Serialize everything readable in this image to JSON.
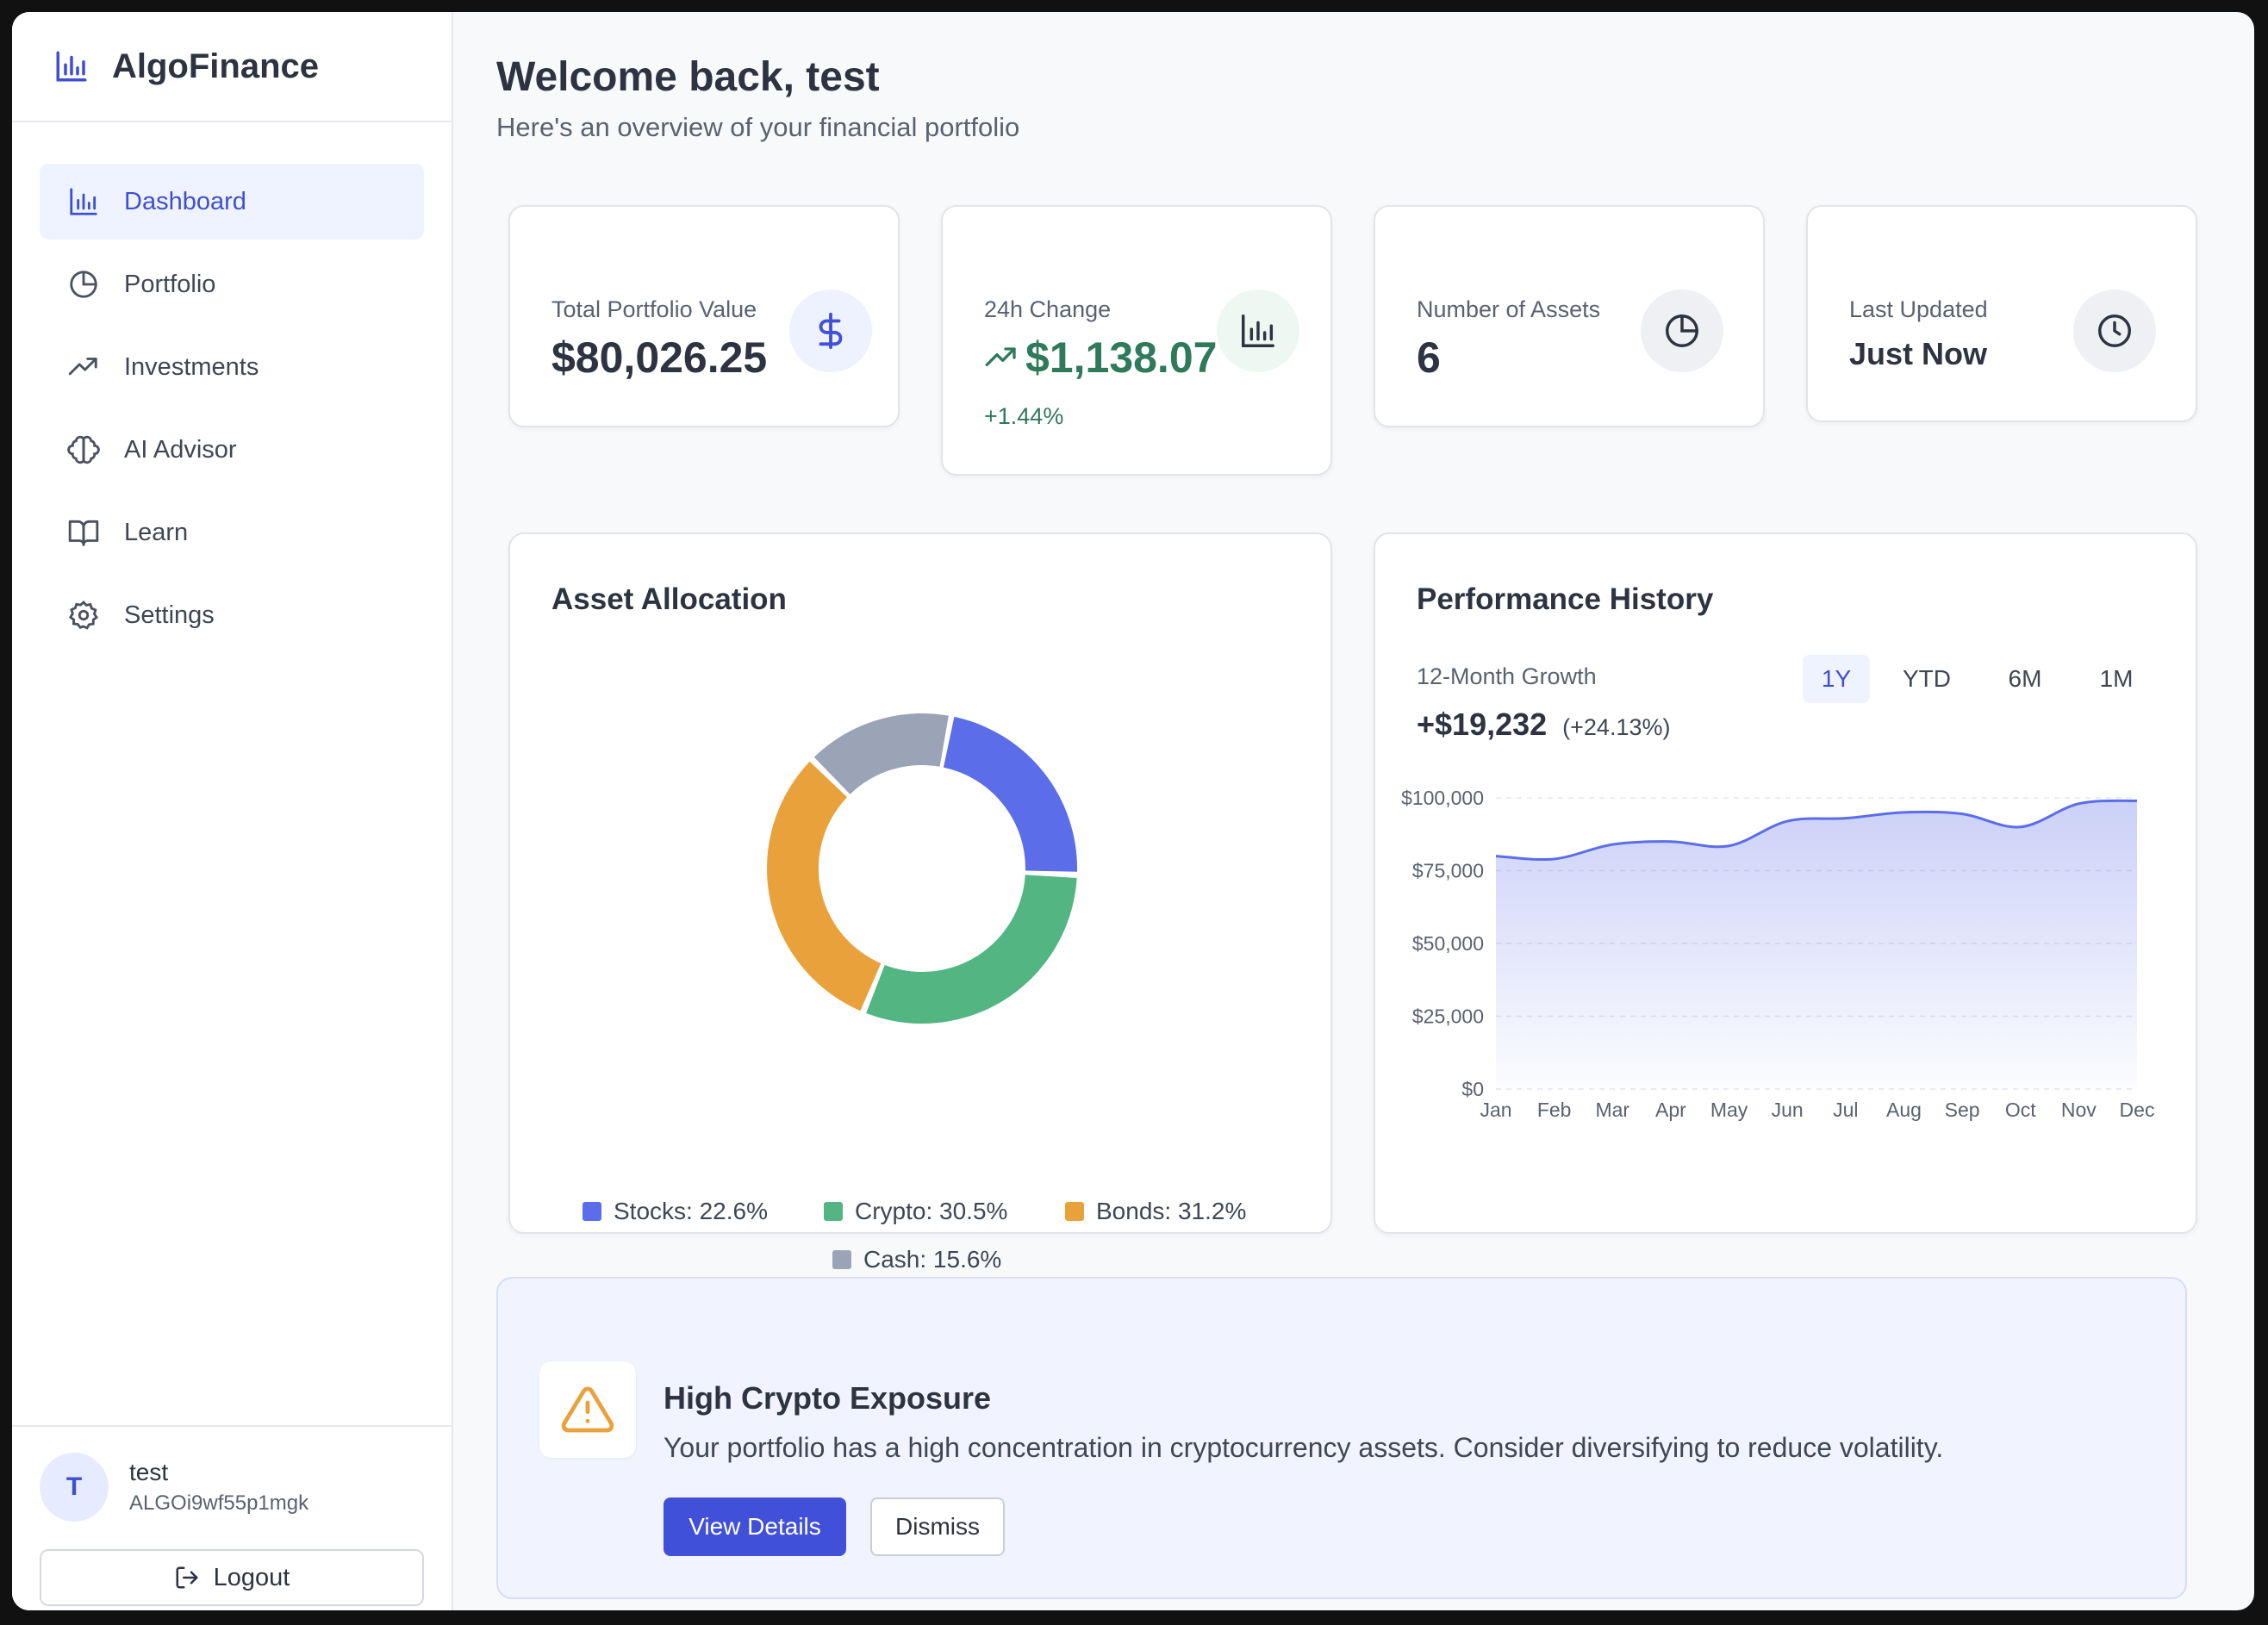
{
  "app": {
    "name": "AlgoFinance"
  },
  "sidebar": {
    "items": [
      {
        "label": "Dashboard",
        "icon": "bar-chart-icon",
        "active": true
      },
      {
        "label": "Portfolio",
        "icon": "pie-chart-icon"
      },
      {
        "label": "Investments",
        "icon": "trending-up-icon"
      },
      {
        "label": "AI Advisor",
        "icon": "brain-icon"
      },
      {
        "label": "Learn",
        "icon": "book-open-icon"
      },
      {
        "label": "Settings",
        "icon": "gear-icon"
      }
    ],
    "user": {
      "initial": "T",
      "name": "test",
      "address": "ALGOi9wf55p1mgk"
    },
    "logout_label": "Logout"
  },
  "header": {
    "title": "Welcome back, test",
    "subtitle": "Here's an overview of your financial portfolio"
  },
  "stats": {
    "total": {
      "label": "Total Portfolio Value",
      "value": "$80,026.25",
      "icon": "dollar-icon"
    },
    "change": {
      "label": "24h Change",
      "value": "$1,138.07",
      "percent": "+1.44%",
      "icon": "bar-chart-icon"
    },
    "assets": {
      "label": "Number of Assets",
      "value": "6",
      "icon": "pie-chart-icon"
    },
    "updated": {
      "label": "Last Updated",
      "value": "Just Now",
      "icon": "clock-icon"
    }
  },
  "allocation": {
    "title": "Asset Allocation",
    "legend": [
      "Stocks: 22.6%",
      "Crypto: 30.5%",
      "Bonds: 31.2%",
      "Cash: 15.6%"
    ]
  },
  "performance": {
    "title": "Performance History",
    "growth_label": "12-Month Growth",
    "growth_value": "+$19,232",
    "growth_percent": "(+24.13%)",
    "ranges": [
      "1Y",
      "YTD",
      "6M",
      "1M"
    ],
    "active_range": "1Y"
  },
  "alert": {
    "title": "High Crypto Exposure",
    "text": "Your portfolio has a high concentration in cryptocurrency assets. Consider diversifying to reduce volatility.",
    "primary_label": "View Details",
    "secondary_label": "Dismiss",
    "icon": "warning-icon"
  },
  "colors": {
    "accent": "#4150d8",
    "positive": "#2f7a5a",
    "stocks": "#5b6de8",
    "crypto": "#52b582",
    "bonds": "#e9a23b",
    "cash": "#9aa4b6"
  },
  "chart_data": [
    {
      "type": "pie",
      "title": "Asset Allocation",
      "donut": true,
      "categories": [
        "Stocks",
        "Crypto",
        "Bonds",
        "Cash"
      ],
      "values": [
        22.6,
        30.5,
        31.2,
        15.6
      ],
      "colors": [
        "#5b6de8",
        "#52b582",
        "#e9a23b",
        "#9aa4b6"
      ],
      "legend": "bottom"
    },
    {
      "type": "area",
      "title": "Performance History",
      "x": [
        "Jan",
        "Feb",
        "Mar",
        "Apr",
        "May",
        "Jun",
        "Jul",
        "Aug",
        "Sep",
        "Oct",
        "Nov",
        "Dec"
      ],
      "series": [
        {
          "values": [
            80000,
            79000,
            84000,
            85000,
            83500,
            92000,
            93000,
            95000,
            94500,
            90000,
            98000,
            99000
          ]
        }
      ],
      "y_ticks": [
        "$0",
        "$25,000",
        "$50,000",
        "$75,000",
        "$100,000"
      ],
      "ylim": [
        0,
        100000
      ],
      "grid": true,
      "color": "#5b6de8"
    }
  ]
}
